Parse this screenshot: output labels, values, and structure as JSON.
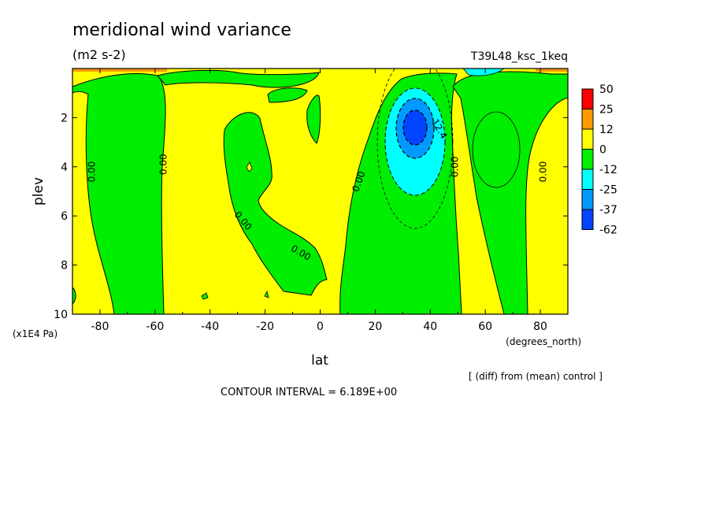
{
  "chart_data": {
    "type": "heatmap",
    "title": "meridional wind variance",
    "units": "(m2 s-2)",
    "case_name": "T39L48_ksc_1keq",
    "xlabel": "lat",
    "xunits": "(degrees_north)",
    "ylabel": "plev",
    "yunits": "(x1E4 Pa)",
    "xlim": [
      -90,
      90
    ],
    "ylim": [
      10,
      0
    ],
    "x_ticks": [
      -80,
      -60,
      -40,
      -20,
      0,
      20,
      40,
      60,
      80
    ],
    "y_ticks": [
      2,
      4,
      6,
      8,
      10
    ],
    "x_tick_labels": [
      "-80",
      "-60",
      "-40",
      "-20",
      "0",
      "20",
      "40",
      "60",
      "80"
    ],
    "y_tick_labels": [
      "2",
      "4",
      "6",
      "8",
      "10"
    ],
    "colorbar": {
      "labels": [
        "50",
        "25",
        "12",
        "0",
        "-12",
        "-25",
        "-37",
        "-62"
      ],
      "colors": [
        "#ff0000",
        "#ff9a00",
        "#ffff00",
        "#00ee00",
        "#00ffff",
        "#0099ff",
        "#0044ff"
      ]
    },
    "contour_labels": [
      {
        "text": "0.00",
        "lat": -83,
        "plev": 4.2,
        "rot": -90
      },
      {
        "text": "0.00",
        "lat": -57,
        "plev": 3.9,
        "rot": -90
      },
      {
        "text": "0.00",
        "lat": -28,
        "plev": 6.2,
        "rot": 50
      },
      {
        "text": "0.00",
        "lat": -7,
        "plev": 7.5,
        "rot": 30
      },
      {
        "text": "0.00",
        "lat": 14,
        "plev": 4.6,
        "rot": -70
      },
      {
        "text": "-12.4",
        "lat": 43,
        "plev": 2.4,
        "rot": 60
      },
      {
        "text": "0.00",
        "lat": 49,
        "plev": 4.0,
        "rot": -90
      },
      {
        "text": "0.00",
        "lat": 81,
        "plev": 4.2,
        "rot": -90
      }
    ],
    "footer_note": "[ (diff) from (mean) control ]",
    "contour_interval": "CONTOUR INTERVAL = 6.189E+00"
  }
}
